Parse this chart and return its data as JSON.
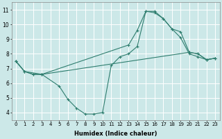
{
  "xlabel": "Humidex (Indice chaleur)",
  "bg_color": "#cce8e8",
  "grid_color": "#ffffff",
  "line_color": "#2e7d6e",
  "xlim": [
    -0.5,
    23.5
  ],
  "ylim": [
    3.5,
    11.5
  ],
  "xticks": [
    0,
    1,
    2,
    3,
    4,
    5,
    6,
    7,
    8,
    9,
    10,
    11,
    12,
    13,
    14,
    15,
    16,
    17,
    18,
    19,
    20,
    21,
    22,
    23
  ],
  "yticks": [
    4,
    5,
    6,
    7,
    8,
    9,
    10,
    11
  ],
  "line1_x": [
    0,
    1,
    2,
    3,
    20,
    21,
    22,
    23
  ],
  "line1_y": [
    7.5,
    6.8,
    6.6,
    6.6,
    8.1,
    8.0,
    7.6,
    7.7
  ],
  "line2_x": [
    0,
    1,
    2,
    3,
    13,
    14,
    15,
    16,
    17,
    18,
    19,
    20,
    21,
    22,
    23
  ],
  "line2_y": [
    7.5,
    6.8,
    6.6,
    6.6,
    8.6,
    9.6,
    10.9,
    10.9,
    10.4,
    9.7,
    9.5,
    8.1,
    8.0,
    7.6,
    7.7
  ],
  "line3_x": [
    0,
    1,
    3,
    5,
    6,
    7,
    8,
    9,
    10,
    11,
    12,
    13,
    14,
    15,
    16,
    17,
    18,
    19,
    20,
    21,
    22,
    23
  ],
  "line3_y": [
    7.5,
    6.8,
    6.6,
    5.8,
    4.9,
    4.3,
    3.9,
    3.9,
    4.0,
    7.2,
    7.8,
    8.0,
    8.5,
    10.9,
    10.8,
    10.4,
    9.7,
    9.1,
    8.0,
    7.8,
    7.6,
    7.7
  ],
  "xtick_fontsize": 5.0,
  "ytick_fontsize": 5.5,
  "xlabel_fontsize": 6.0
}
